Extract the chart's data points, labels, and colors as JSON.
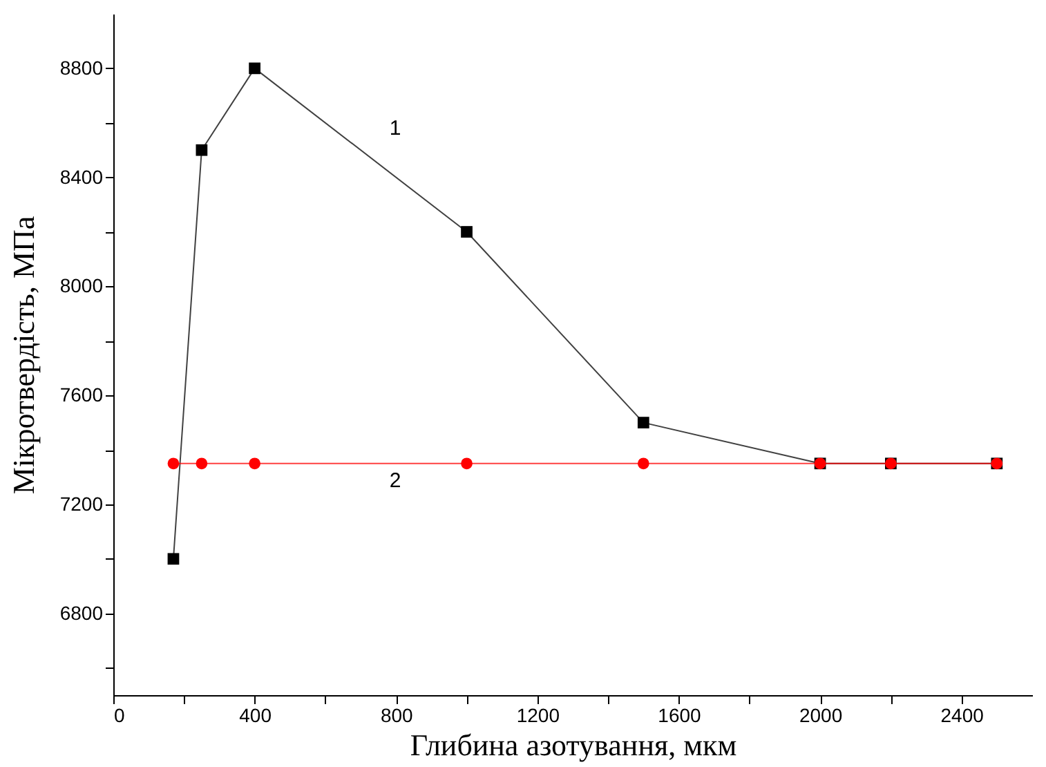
{
  "chart_data": {
    "type": "line",
    "xlabel": "Глибина азотування, мкм",
    "ylabel": "Мікротвердість, МПа",
    "xlim": [
      0,
      2600
    ],
    "ylim": [
      6500,
      9000
    ],
    "xticks": [
      0,
      {
        "value": 200,
        "label": null
      },
      400,
      {
        "value": 600,
        "label": null
      },
      800,
      {
        "value": 1000,
        "label": null
      },
      1200,
      {
        "value": 1400,
        "label": null
      },
      1600,
      {
        "value": 1800,
        "label": null
      },
      2000,
      {
        "value": 2200,
        "label": null
      },
      2400
    ],
    "yticks": [
      {
        "value": 6600,
        "label": null
      },
      6800,
      {
        "value": 7000,
        "label": null
      },
      7200,
      {
        "value": 7400,
        "label": null
      },
      7600,
      {
        "value": 7800,
        "label": null
      },
      8000,
      {
        "value": 8200,
        "label": null
      },
      8400,
      {
        "value": 8600,
        "label": null
      },
      8800
    ],
    "grid": false,
    "legend": false,
    "line_style": "solid",
    "series": [
      {
        "name": "1",
        "color": "#000000",
        "marker": "square",
        "x": [
          170,
          250,
          400,
          1000,
          1500,
          2000,
          2200,
          2500
        ],
        "values": [
          7000,
          8500,
          8800,
          8200,
          7500,
          7350,
          7350,
          7350
        ]
      },
      {
        "name": "2",
        "color": "#ff0000",
        "marker": "circle",
        "x": [
          170,
          250,
          400,
          1000,
          1500,
          2000,
          2200,
          2500
        ],
        "values": [
          7350,
          7350,
          7350,
          7350,
          7350,
          7350,
          7350,
          7350
        ]
      }
    ]
  }
}
